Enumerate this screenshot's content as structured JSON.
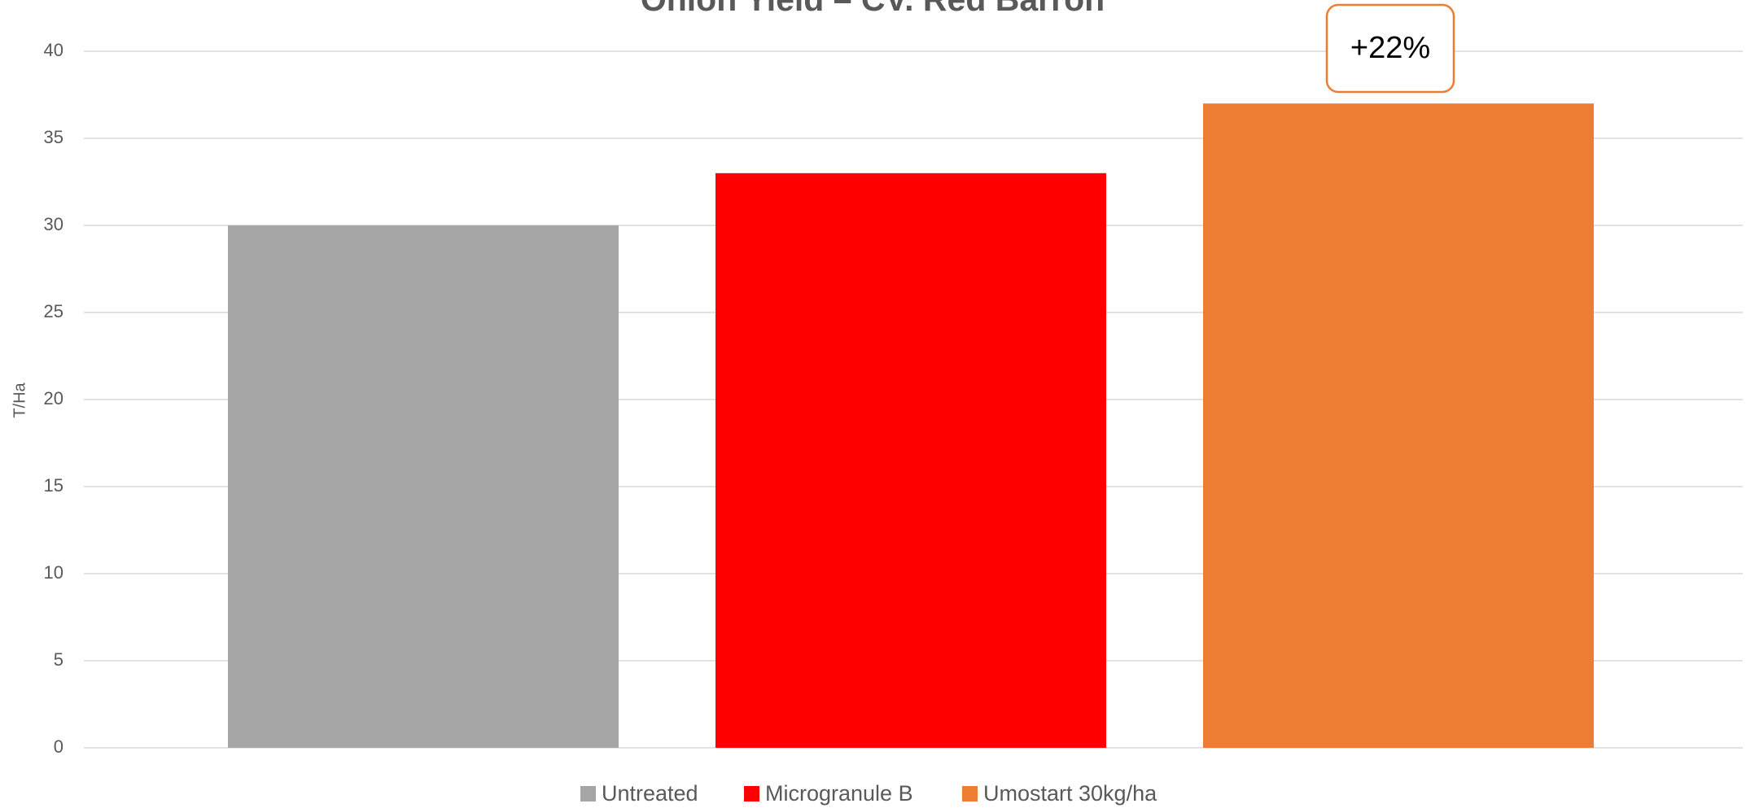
{
  "chart_data": {
    "type": "bar",
    "title": "Onion Yield – CV. Red Barron",
    "y_label": "T/Ha",
    "categories": [
      "Untreated",
      "Microgranule B",
      "Umostart 30kg/ha"
    ],
    "values": [
      30,
      33,
      37
    ],
    "colors": [
      "#a5a5a5",
      "#ff0000",
      "#ed7d31"
    ],
    "ylim": [
      0,
      40
    ],
    "yticks": [
      0,
      5,
      10,
      15,
      20,
      25,
      30,
      35,
      40
    ],
    "grid": true,
    "annotation": "+22%",
    "legend": "bottom"
  }
}
